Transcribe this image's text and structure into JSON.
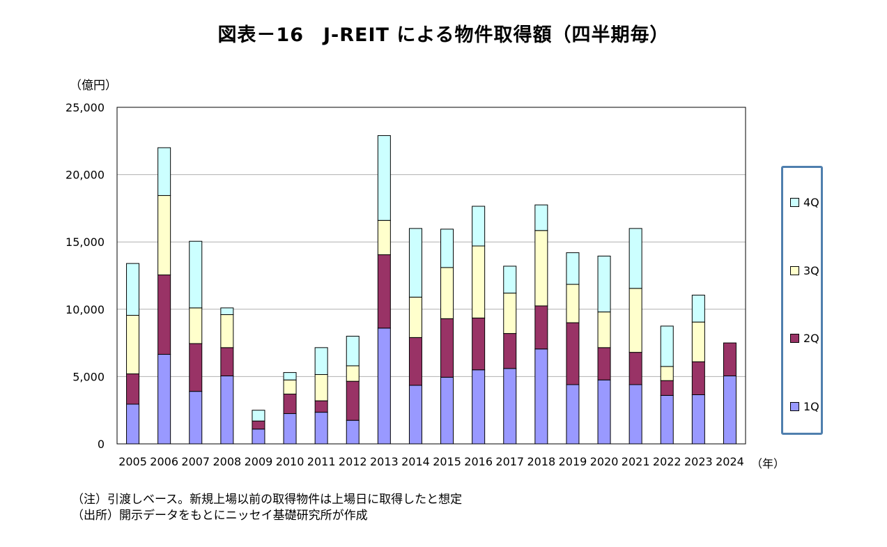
{
  "title": "図表－16　J-REIT による物件取得額（四半期毎）",
  "y_unit_label": "（億円）",
  "x_unit_label": "（年）",
  "notes": [
    "（注）引渡しベース。新規上場以前の取得物件は上場日に取得したと想定",
    "（出所）開示データをもとにニッセイ基礎研究所が作成"
  ],
  "colors": {
    "1Q": "#9999ff",
    "2Q": "#993366",
    "3Q": "#ffffcc",
    "4Q": "#ccffff"
  },
  "chart_data": {
    "type": "bar",
    "stacked": true,
    "categories": [
      "2005",
      "2006",
      "2007",
      "2008",
      "2009",
      "2010",
      "2011",
      "2012",
      "2013",
      "2014",
      "2015",
      "2016",
      "2017",
      "2018",
      "2019",
      "2020",
      "2021",
      "2022",
      "2023",
      "2024"
    ],
    "series": [
      {
        "name": "1Q",
        "values": [
          2950,
          6650,
          3900,
          5050,
          1100,
          2250,
          2350,
          1750,
          8600,
          4350,
          4950,
          5500,
          5600,
          7050,
          4400,
          4750,
          4400,
          3600,
          3650,
          5050
        ]
      },
      {
        "name": "2Q",
        "values": [
          2250,
          5900,
          3550,
          2100,
          600,
          1450,
          850,
          2900,
          5450,
          3550,
          4350,
          3850,
          2600,
          3200,
          4600,
          2400,
          2400,
          1100,
          2450,
          2450
        ]
      },
      {
        "name": "3Q",
        "values": [
          4350,
          5900,
          2650,
          2450,
          0,
          1050,
          1950,
          1150,
          2550,
          3000,
          3800,
          5350,
          3000,
          5600,
          2850,
          2650,
          4750,
          1050,
          2950,
          0
        ]
      },
      {
        "name": "4Q",
        "values": [
          3850,
          3550,
          4950,
          500,
          800,
          550,
          2000,
          2200,
          6300,
          5100,
          2850,
          2950,
          2000,
          1900,
          2350,
          4150,
          4450,
          3000,
          2000,
          0
        ]
      }
    ],
    "ylim": [
      0,
      25000
    ],
    "yticks": [
      "0",
      "5,000",
      "10,000",
      "15,000",
      "20,000",
      "25,000"
    ],
    "ytick_values": [
      0,
      5000,
      10000,
      15000,
      20000,
      25000
    ],
    "grid": true,
    "legend_position": "right",
    "legend_order": [
      "4Q",
      "3Q",
      "2Q",
      "1Q"
    ]
  }
}
